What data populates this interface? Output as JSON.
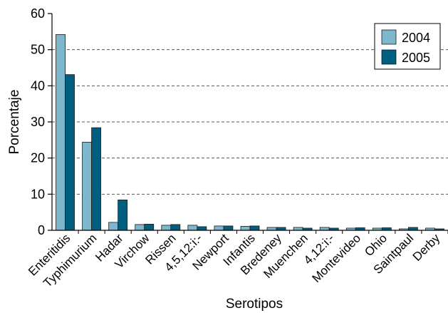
{
  "chart_data": {
    "type": "bar",
    "title": "",
    "xlabel": "Serotipos",
    "ylabel": "Porcentaje",
    "ylim": [
      0,
      60
    ],
    "yticks": [
      0,
      10,
      20,
      30,
      40,
      50,
      60
    ],
    "grid": "horizontal dashed",
    "legend_position": "top-right",
    "categories": [
      "Enteritidis",
      "Typhimurium",
      "Hadar",
      "Virchow",
      "Rissen",
      "4,5,12:i:-",
      "Newport",
      "Infantis",
      "Bredeney",
      "Muenchen",
      "4,12:i:-",
      "Montevideo",
      "Ohio",
      "Saintpaul",
      "Derby"
    ],
    "series": [
      {
        "name": "2004",
        "color": "#7eb6cc",
        "values": [
          54.2,
          24.4,
          2.2,
          1.6,
          1.4,
          1.4,
          1.2,
          1.1,
          0.8,
          0.8,
          0.8,
          0.6,
          0.6,
          0.4,
          0.6
        ]
      },
      {
        "name": "2005",
        "color": "#005f80",
        "values": [
          43.1,
          28.4,
          8.4,
          1.7,
          1.6,
          1.0,
          1.2,
          1.2,
          0.8,
          0.6,
          0.6,
          0.7,
          0.7,
          0.8,
          0.4
        ]
      }
    ]
  }
}
